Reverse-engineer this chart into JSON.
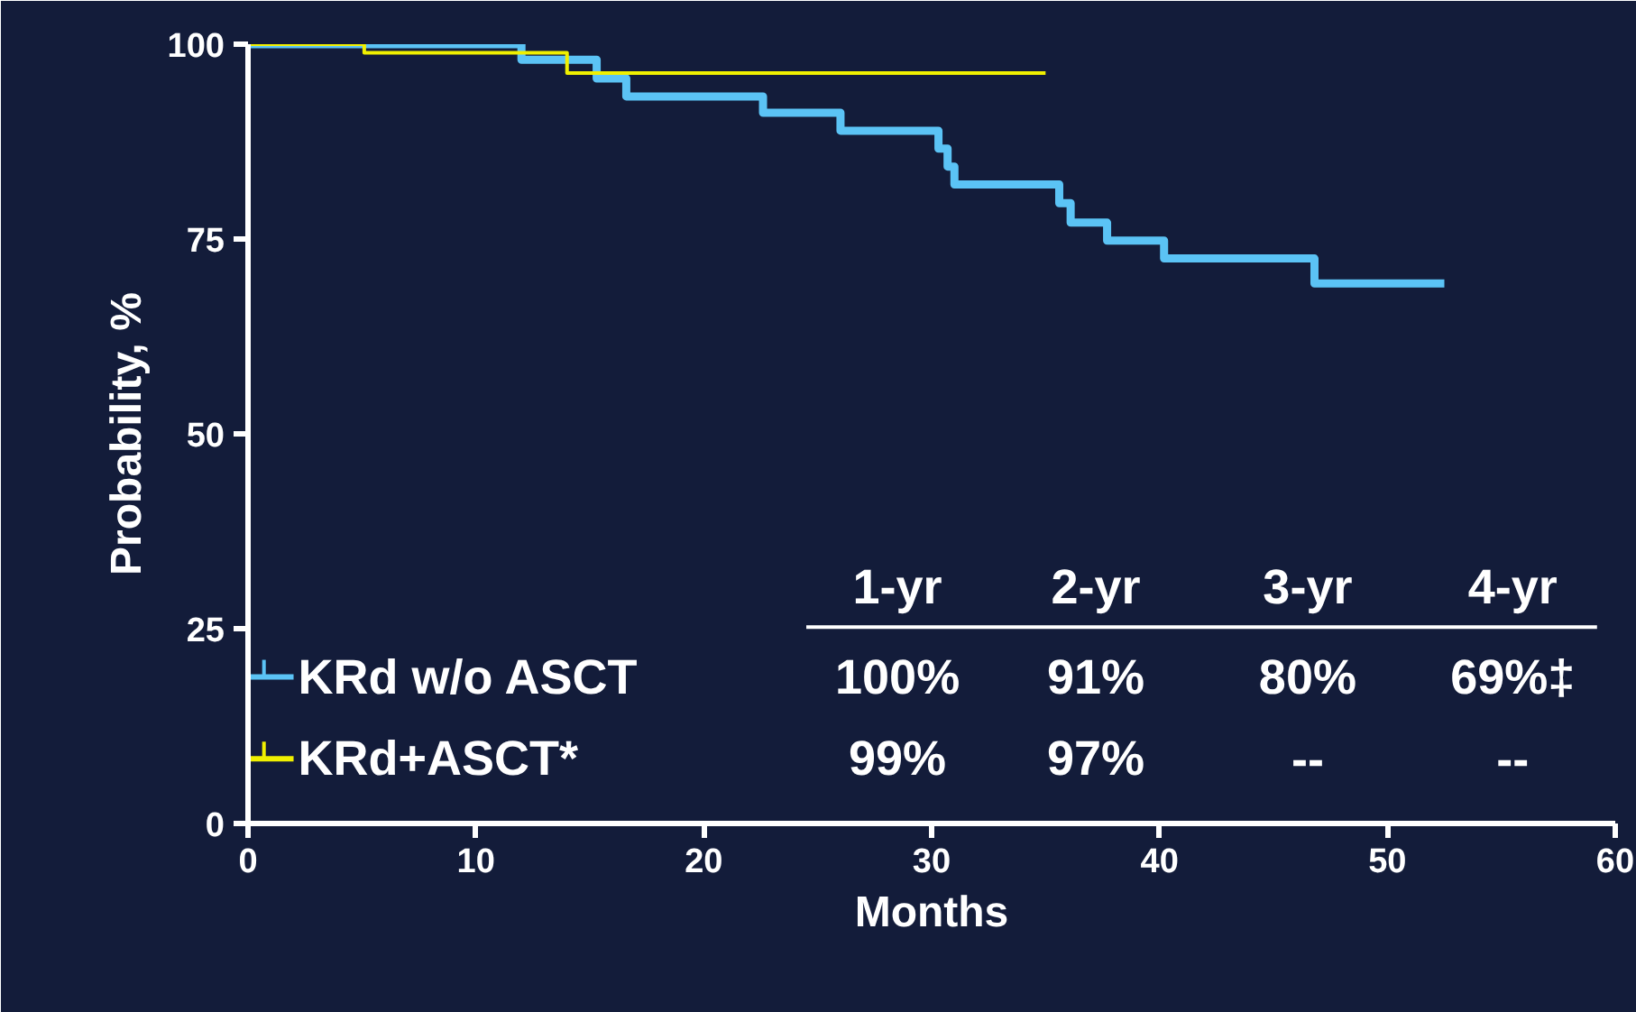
{
  "chart_data": {
    "type": "step",
    "xlabel": "Months",
    "ylabel": "Probability, %",
    "xlim": [
      0,
      60
    ],
    "xticks": [
      0,
      10,
      20,
      30,
      40,
      50,
      60
    ],
    "ylim": [
      0,
      100
    ],
    "yticks": [
      0,
      25,
      50,
      75,
      100
    ],
    "grid": false,
    "legend": "bottom left",
    "series": [
      {
        "name": "KRd w/o ASCT",
        "color": "#5bc3f5",
        "x": [
          0,
          12,
          15.3,
          16.6,
          22.6,
          26,
          30.3,
          30.7,
          31,
          35.6,
          36.1,
          37.7,
          40.2,
          46.8,
          52.5
        ],
        "values": [
          100,
          98,
          95.6,
          93.3,
          91.2,
          88.9,
          86.6,
          84.3,
          82,
          79.6,
          77.1,
          74.8,
          72.5,
          69.3,
          69.3
        ]
      },
      {
        "name": "KRd+ASCT*",
        "color": "#f0f000",
        "x": [
          0,
          5.1,
          14,
          35
        ],
        "values": [
          100,
          98.9,
          96.3,
          96.3
        ]
      }
    ],
    "annotations": [
      "1-yr",
      "2-yr",
      "3-yr",
      "4-yr",
      "100%",
      "91%",
      "80%",
      "69%‡",
      "99%",
      "97%",
      "--",
      "--"
    ]
  }
}
